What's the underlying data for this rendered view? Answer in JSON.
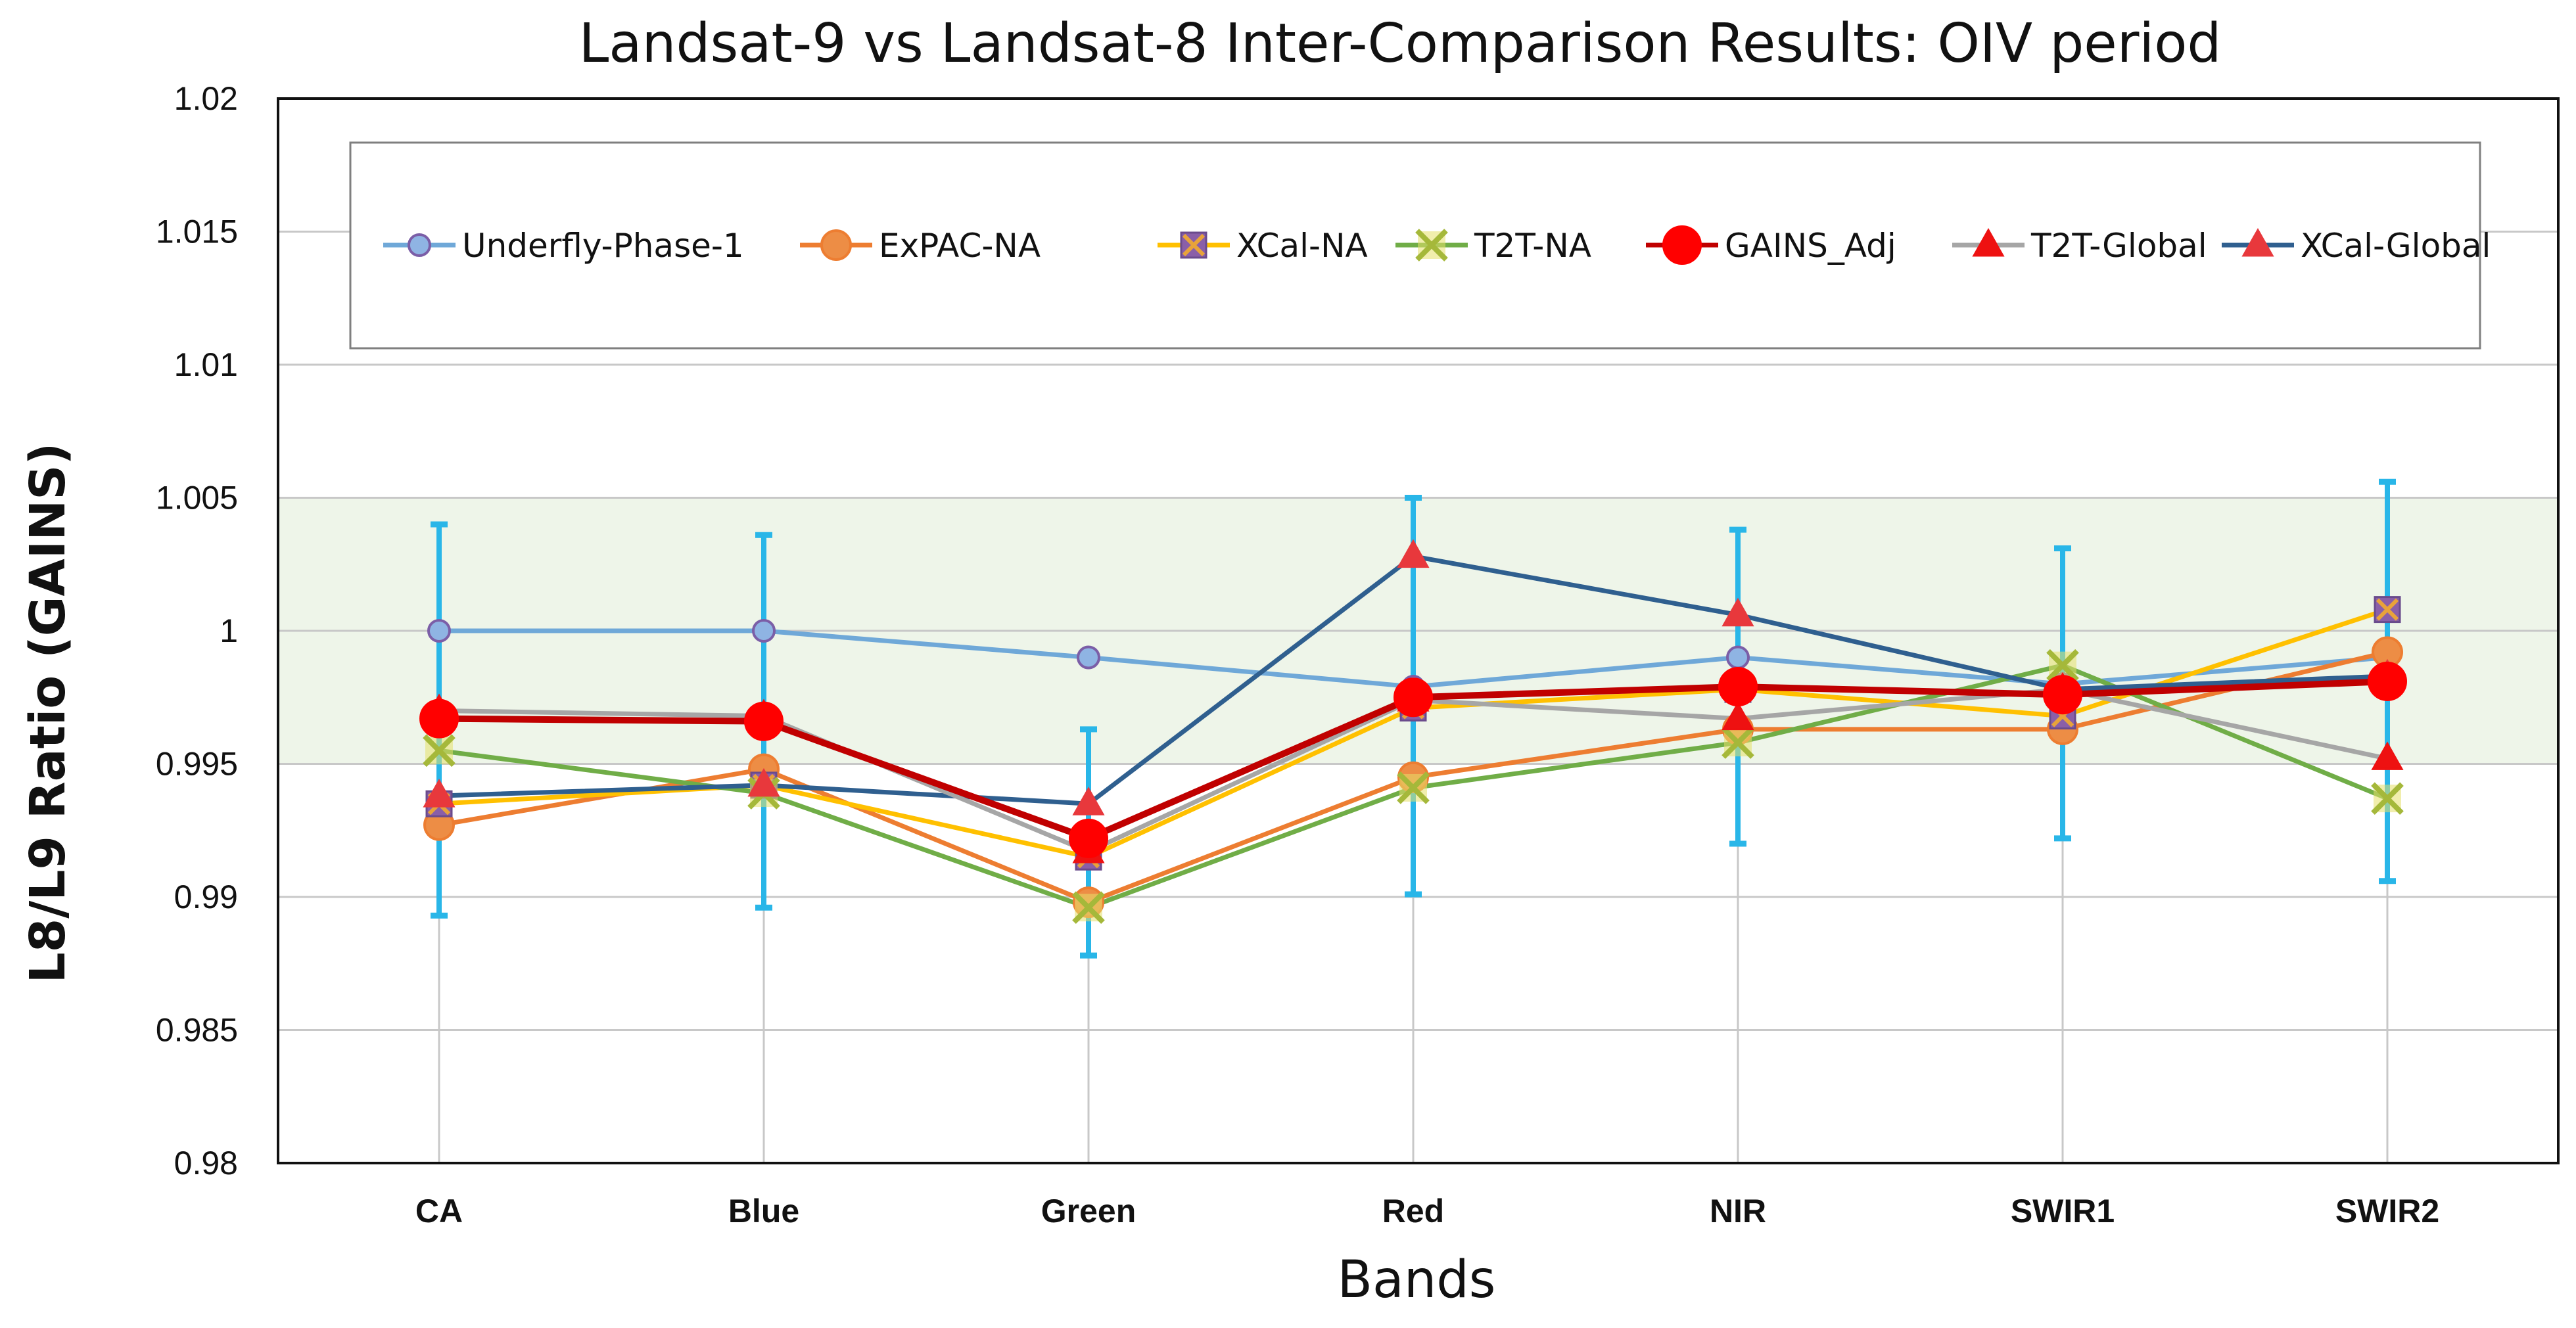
{
  "chart_data": {
    "type": "line",
    "title": "Landsat-9 vs Landsat-8 Inter-Comparison Results: OIV period",
    "xlabel": "Bands",
    "ylabel": "L8/L9 Ratio (GAINS)",
    "categories": [
      "CA",
      "Blue",
      "Green",
      "Red",
      "NIR",
      "SWIR1",
      "SWIR2"
    ],
    "ylim": [
      0.98,
      1.02
    ],
    "yticks": [
      0.98,
      0.985,
      0.99,
      0.995,
      1,
      1.005,
      1.01,
      1.015,
      1.02
    ],
    "ytick_labels": [
      "0.98",
      "0.985",
      "0.99",
      "0.995",
      "1",
      "1.005",
      "1.01",
      "1.015",
      "1.02"
    ],
    "band_shading": {
      "from": 0.995,
      "to": 1.005,
      "color": "#eef5e9"
    },
    "grid": true,
    "legend_position": "top",
    "error_bars": {
      "color": "#29b6e8",
      "centers": [
        0.99665,
        0.9966,
        0.99205,
        0.99755,
        0.9979,
        0.99765,
        0.99815
      ],
      "low": [
        0.9893,
        0.9896,
        0.9878,
        0.9901,
        0.992,
        0.9922,
        0.9906
      ],
      "high": [
        1.004,
        1.0036,
        0.9963,
        1.005,
        1.0038,
        1.0031,
        1.0056
      ]
    },
    "series": [
      {
        "name": "Underfly-Phase-1",
        "color": "#6fa8d8",
        "marker": "circle",
        "marker_fill": "#8fb4e3",
        "marker_stroke": "#7b5ea7",
        "values": [
          1.0,
          1.0,
          0.999,
          0.9979,
          0.999,
          0.998,
          0.999
        ]
      },
      {
        "name": "ExPAC-NA",
        "color": "#ed7d31",
        "marker": "circle",
        "marker_fill": "#ed8d45",
        "marker_stroke": "#ed7d31",
        "values": [
          0.9927,
          0.9948,
          0.9898,
          0.9945,
          0.9963,
          0.9963,
          0.9992
        ]
      },
      {
        "name": "XCal-NA",
        "color": "#ffc000",
        "marker": "square-x",
        "marker_fill": "#8a5fa8",
        "marker_stroke": "#e8a33a",
        "values": [
          0.9935,
          0.9942,
          0.9915,
          0.9971,
          0.9978,
          0.9968,
          1.0008
        ]
      },
      {
        "name": "T2T-NA",
        "color": "#70ad47",
        "marker": "x",
        "marker_fill": "#e6e06a",
        "marker_stroke": "#a5b83a",
        "values": [
          0.9955,
          0.9939,
          0.9896,
          0.9941,
          0.9958,
          0.9987,
          0.9937
        ]
      },
      {
        "name": "GAINS_Adj",
        "color": "#c00000",
        "marker": "circle",
        "marker_fill": "#ff0000",
        "marker_stroke": "#ff0000",
        "values": [
          0.9967,
          0.9966,
          0.9922,
          0.9975,
          0.9979,
          0.9976,
          0.9981
        ]
      },
      {
        "name": "T2T-Global",
        "color": "#a6a6a6",
        "marker": "triangle",
        "marker_fill": "#ee1111",
        "marker_stroke": "#ee1111",
        "values": [
          0.997,
          0.9968,
          0.9917,
          0.9974,
          0.9967,
          0.9978,
          0.9952
        ]
      },
      {
        "name": "XCal-Global",
        "color": "#2f5f8f",
        "marker": "triangle",
        "marker_fill": "#e8383c",
        "marker_stroke": "#e8383c",
        "values": [
          0.9938,
          0.9942,
          0.9935,
          1.0028,
          1.0006,
          0.9978,
          0.9983
        ]
      }
    ]
  }
}
